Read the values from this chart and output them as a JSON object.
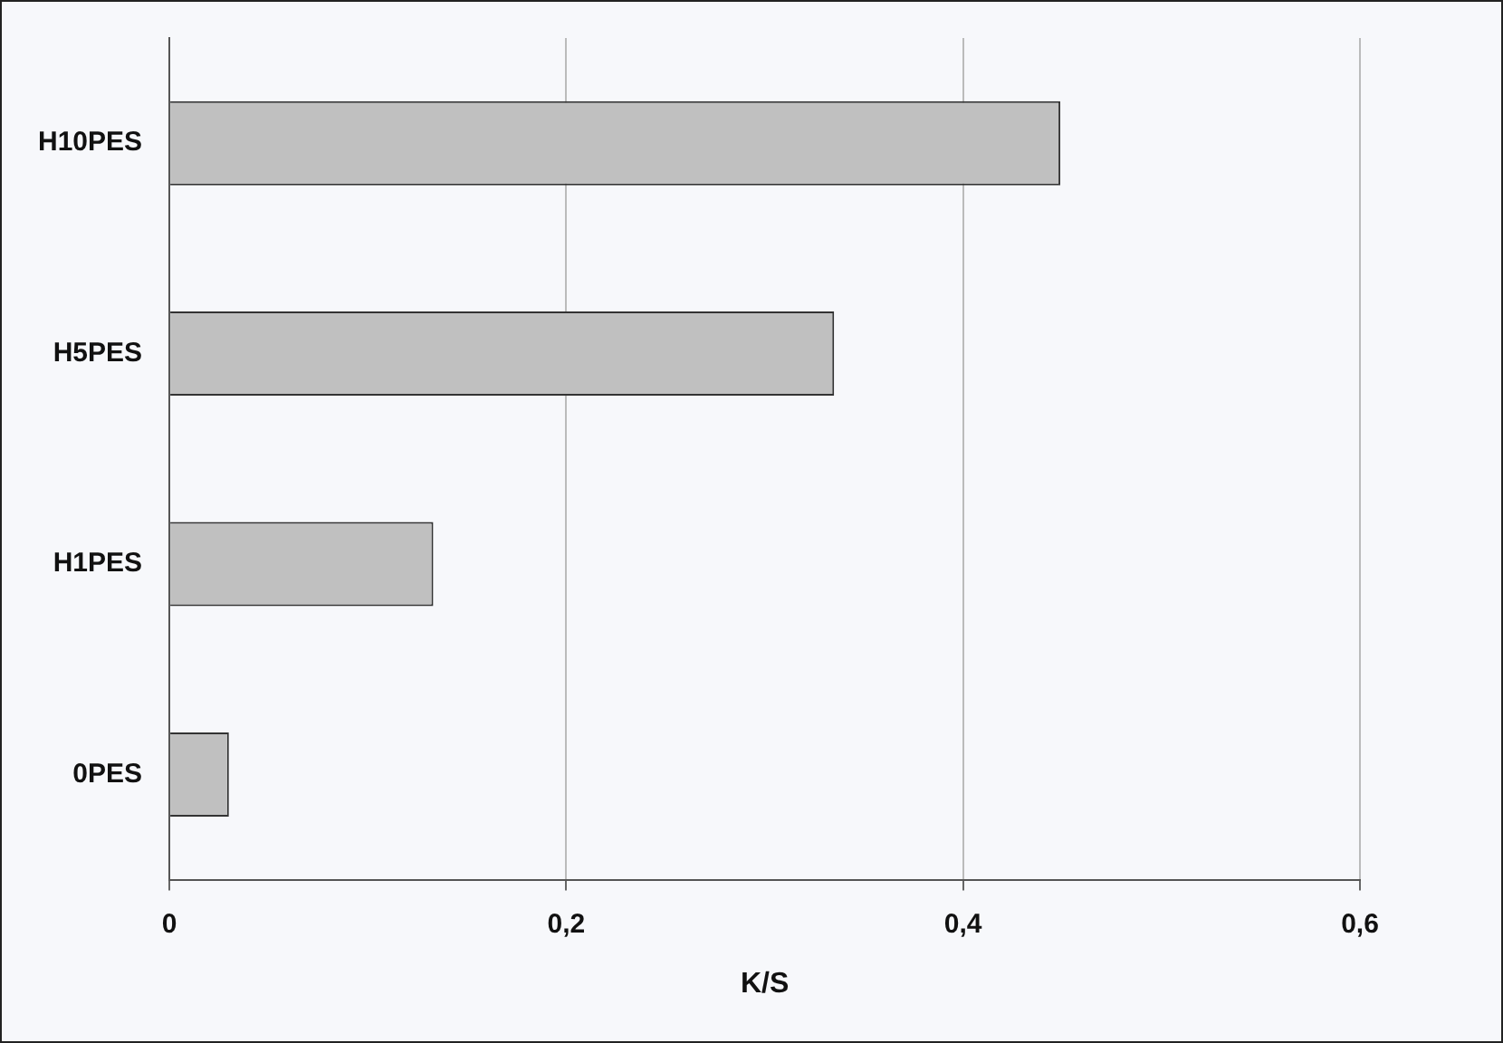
{
  "chart_data": {
    "type": "bar",
    "orientation": "horizontal",
    "xlabel": "K/S",
    "categories": [
      "H10PES",
      "H5PES",
      "H1PES",
      "0PES"
    ],
    "values": [
      0.449,
      0.335,
      0.133,
      0.03
    ],
    "color": "#c0c0c0",
    "xlim": [
      0,
      0.6
    ],
    "xticks": [
      0,
      {
        "value": 0.2,
        "label": "0,2"
      },
      {
        "value": 0.4,
        "label": "0,4"
      },
      {
        "value": 0.6,
        "label": "0,6"
      }
    ],
    "grid": "x",
    "legend": false
  }
}
